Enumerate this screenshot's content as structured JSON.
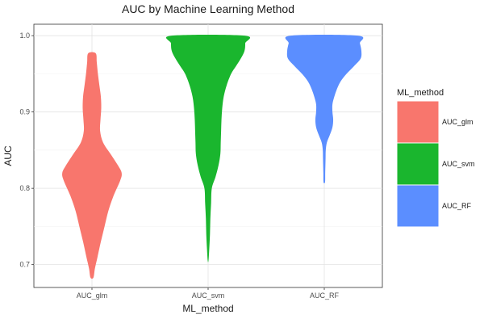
{
  "chart_data": {
    "type": "violin",
    "title": "AUC by Machine Learning Method",
    "xlabel": "ML_method",
    "ylabel": "AUC",
    "categories": [
      "AUC_glm",
      "AUC_svm",
      "AUC_RF"
    ],
    "ylim": [
      0.67,
      1.015
    ],
    "yticks": [
      "0.7",
      "0.8",
      "0.9",
      "1.0"
    ],
    "grid": true,
    "legend": {
      "title": "ML_method",
      "position": "right",
      "entries": [
        "AUC_glm",
        "AUC_svm",
        "AUC_RF"
      ]
    },
    "colors": [
      "#F8766D",
      "#1AB62E",
      "#5B8EFF"
    ],
    "series": [
      {
        "category": "AUC_glm",
        "y_min": 0.683,
        "y_max": 0.977,
        "density_profile": [
          [
            0.977,
            0.1
          ],
          [
            0.965,
            0.13
          ],
          [
            0.95,
            0.16
          ],
          [
            0.935,
            0.2
          ],
          [
            0.92,
            0.24
          ],
          [
            0.905,
            0.25
          ],
          [
            0.89,
            0.23
          ],
          [
            0.875,
            0.22
          ],
          [
            0.86,
            0.3
          ],
          [
            0.845,
            0.5
          ],
          [
            0.83,
            0.7
          ],
          [
            0.82,
            0.8
          ],
          [
            0.81,
            0.76
          ],
          [
            0.79,
            0.58
          ],
          [
            0.77,
            0.44
          ],
          [
            0.75,
            0.34
          ],
          [
            0.73,
            0.24
          ],
          [
            0.71,
            0.15
          ],
          [
            0.695,
            0.08
          ],
          [
            0.683,
            0.04
          ]
        ]
      },
      {
        "category": "AUC_svm",
        "y_min": 0.705,
        "y_max": 1.0,
        "density_profile": [
          [
            1.0,
            0.98
          ],
          [
            0.99,
            1.0
          ],
          [
            0.98,
            0.98
          ],
          [
            0.97,
            0.88
          ],
          [
            0.96,
            0.75
          ],
          [
            0.95,
            0.62
          ],
          [
            0.935,
            0.5
          ],
          [
            0.92,
            0.42
          ],
          [
            0.905,
            0.38
          ],
          [
            0.89,
            0.36
          ],
          [
            0.875,
            0.35
          ],
          [
            0.86,
            0.34
          ],
          [
            0.845,
            0.33
          ],
          [
            0.83,
            0.28
          ],
          [
            0.815,
            0.2
          ],
          [
            0.8,
            0.1
          ],
          [
            0.78,
            0.08
          ],
          [
            0.76,
            0.06
          ],
          [
            0.74,
            0.05
          ],
          [
            0.72,
            0.03
          ],
          [
            0.705,
            0.01
          ]
        ]
      },
      {
        "category": "AUC_RF",
        "y_min": 0.808,
        "y_max": 1.0,
        "density_profile": [
          [
            1.0,
            0.9
          ],
          [
            0.99,
            0.96
          ],
          [
            0.98,
            1.0
          ],
          [
            0.97,
            0.98
          ],
          [
            0.96,
            0.8
          ],
          [
            0.95,
            0.6
          ],
          [
            0.94,
            0.44
          ],
          [
            0.93,
            0.34
          ],
          [
            0.92,
            0.27
          ],
          [
            0.91,
            0.22
          ],
          [
            0.9,
            0.22
          ],
          [
            0.89,
            0.24
          ],
          [
            0.88,
            0.22
          ],
          [
            0.87,
            0.15
          ],
          [
            0.86,
            0.07
          ],
          [
            0.85,
            0.04
          ],
          [
            0.84,
            0.035
          ],
          [
            0.83,
            0.03
          ],
          [
            0.82,
            0.025
          ],
          [
            0.808,
            0.02
          ]
        ]
      }
    ]
  }
}
